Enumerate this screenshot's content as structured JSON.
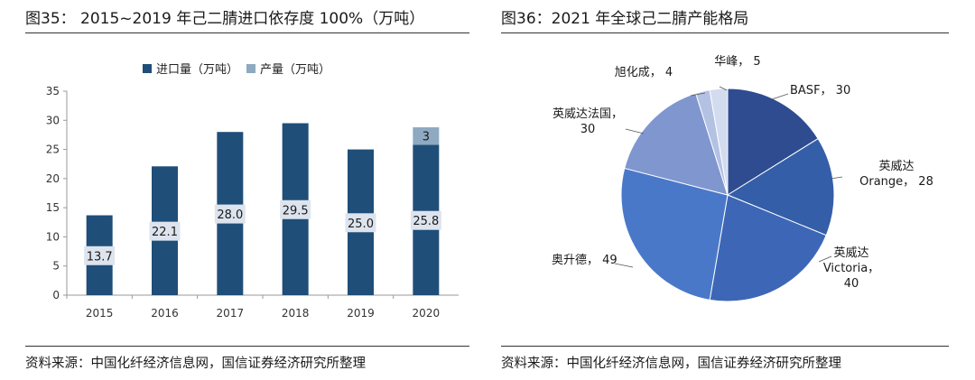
{
  "left": {
    "title": "图35： 2015~2019 年己二腈进口依存度 100%（万吨）",
    "source": "资料来源：中国化纤经济信息网，国信证券经济研究所整理"
  },
  "right": {
    "title": "图36：2021 年全球己二腈产能格局",
    "source": "资料来源：中国化纤经济信息网，国信证券经济研究所整理"
  },
  "chart_data": [
    {
      "type": "bar",
      "stacked": true,
      "title": "图35： 2015~2019 年己二腈进口依存度 100%（万吨）",
      "categories": [
        "2015",
        "2016",
        "2017",
        "2018",
        "2019",
        "2020"
      ],
      "series": [
        {
          "name": "进口量（万吨）",
          "color": "#1f4e79",
          "values": [
            13.7,
            22.1,
            28.0,
            29.5,
            25.0,
            25.8
          ],
          "labels": [
            "13.7",
            "22.1",
            "28.0",
            "29.5",
            "25.0",
            "25.8"
          ]
        },
        {
          "name": "产量（万吨）",
          "color": "#8ea9c1",
          "values": [
            0,
            0,
            0,
            0,
            0,
            3
          ],
          "labels": [
            "",
            "",
            "",
            "",
            "",
            "3"
          ]
        }
      ],
      "ylim": [
        0,
        35
      ],
      "yticks": [
        "0",
        "5",
        "10",
        "15",
        "20",
        "25",
        "30",
        "35"
      ],
      "xlabel": "",
      "ylabel": "",
      "legend": "top",
      "grid": false
    },
    {
      "type": "pie",
      "title": "图36：2021 年全球己二腈产能格局",
      "slices": [
        {
          "label": "BASF， 30",
          "value": 30,
          "color": "#2e4c8f"
        },
        {
          "label": "英威达 Orange， 28",
          "value": 28,
          "color": "#355ea8"
        },
        {
          "label": "英威达 Victoria， 40",
          "value": 40,
          "color": "#3d67b6"
        },
        {
          "label": "奥升德， 49",
          "value": 49,
          "color": "#4a78c9"
        },
        {
          "label": "英威达法国， 30",
          "value": 30,
          "color": "#8096cf"
        },
        {
          "label": "旭化成， 4",
          "value": 4,
          "color": "#b3c1e3"
        },
        {
          "label": "华峰， 5",
          "value": 5,
          "color": "#d3dbef"
        }
      ],
      "legend": "none"
    }
  ]
}
